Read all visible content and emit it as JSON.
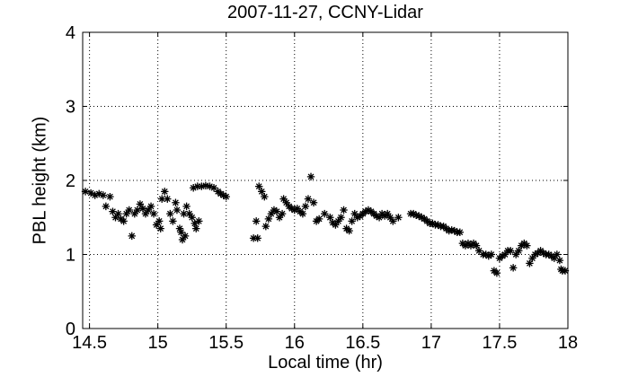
{
  "chart_data": {
    "type": "scatter",
    "title": "2007-11-27, CCNY-Lidar",
    "xlabel": "Local time (hr)",
    "ylabel": "PBL height (km)",
    "xlim": [
      14.45,
      18.0
    ],
    "ylim": [
      0,
      4
    ],
    "xticks": [
      "14.5",
      "15",
      "15.5",
      "16",
      "16.5",
      "17",
      "17.5",
      "18"
    ],
    "yticks": [
      "0",
      "1",
      "2",
      "3",
      "4"
    ],
    "grid": true,
    "marker": "asterisk",
    "marker_color": "#000000",
    "series": [
      {
        "points": [
          [
            14.47,
            1.85
          ],
          [
            14.51,
            1.83
          ],
          [
            14.54,
            1.8
          ],
          [
            14.57,
            1.82
          ],
          [
            14.6,
            1.8
          ],
          [
            14.62,
            1.65
          ],
          [
            14.65,
            1.78
          ],
          [
            14.67,
            1.58
          ],
          [
            14.69,
            1.5
          ],
          [
            14.71,
            1.55
          ],
          [
            14.73,
            1.48
          ],
          [
            14.75,
            1.45
          ],
          [
            14.77,
            1.55
          ],
          [
            14.79,
            1.6
          ],
          [
            14.81,
            1.25
          ],
          [
            14.83,
            1.55
          ],
          [
            14.85,
            1.6
          ],
          [
            14.87,
            1.68
          ],
          [
            14.89,
            1.62
          ],
          [
            14.91,
            1.55
          ],
          [
            14.93,
            1.6
          ],
          [
            14.95,
            1.65
          ],
          [
            14.97,
            1.55
          ],
          [
            14.99,
            1.4
          ],
          [
            15.01,
            1.45
          ],
          [
            15.02,
            1.35
          ],
          [
            15.03,
            1.75
          ],
          [
            15.05,
            1.85
          ],
          [
            15.07,
            1.75
          ],
          [
            15.09,
            1.55
          ],
          [
            15.11,
            1.45
          ],
          [
            15.13,
            1.7
          ],
          [
            15.14,
            1.6
          ],
          [
            15.16,
            1.35
          ],
          [
            15.17,
            1.3
          ],
          [
            15.18,
            1.2
          ],
          [
            15.19,
            1.55
          ],
          [
            15.2,
            1.25
          ],
          [
            15.21,
            1.65
          ],
          [
            15.23,
            1.55
          ],
          [
            15.25,
            1.5
          ],
          [
            15.27,
            1.42
          ],
          [
            15.28,
            1.35
          ],
          [
            15.3,
            1.45
          ],
          [
            15.26,
            1.9
          ],
          [
            15.29,
            1.92
          ],
          [
            15.32,
            1.92
          ],
          [
            15.35,
            1.93
          ],
          [
            15.38,
            1.92
          ],
          [
            15.41,
            1.9
          ],
          [
            15.44,
            1.85
          ],
          [
            15.46,
            1.82
          ],
          [
            15.48,
            1.8
          ],
          [
            15.5,
            1.78
          ],
          [
            15.7,
            1.22
          ],
          [
            15.72,
            1.45
          ],
          [
            15.73,
            1.22
          ],
          [
            15.74,
            1.92
          ],
          [
            15.76,
            1.85
          ],
          [
            15.78,
            1.78
          ],
          [
            15.79,
            1.38
          ],
          [
            15.81,
            1.48
          ],
          [
            15.83,
            1.55
          ],
          [
            15.85,
            1.6
          ],
          [
            15.87,
            1.58
          ],
          [
            15.89,
            1.5
          ],
          [
            15.91,
            1.55
          ],
          [
            15.92,
            1.75
          ],
          [
            15.94,
            1.7
          ],
          [
            15.96,
            1.65
          ],
          [
            15.98,
            1.62
          ],
          [
            16.0,
            1.6
          ],
          [
            16.02,
            1.62
          ],
          [
            16.04,
            1.58
          ],
          [
            16.06,
            1.55
          ],
          [
            16.08,
            1.65
          ],
          [
            16.1,
            1.75
          ],
          [
            16.12,
            2.05
          ],
          [
            16.14,
            1.7
          ],
          [
            16.16,
            1.45
          ],
          [
            16.18,
            1.48
          ],
          [
            16.22,
            1.55
          ],
          [
            16.26,
            1.5
          ],
          [
            16.28,
            1.43
          ],
          [
            16.3,
            1.4
          ],
          [
            16.32,
            1.45
          ],
          [
            16.34,
            1.5
          ],
          [
            16.36,
            1.6
          ],
          [
            16.38,
            1.35
          ],
          [
            16.4,
            1.32
          ],
          [
            16.42,
            1.45
          ],
          [
            16.44,
            1.55
          ],
          [
            16.46,
            1.5
          ],
          [
            16.48,
            1.52
          ],
          [
            16.5,
            1.55
          ],
          [
            16.52,
            1.58
          ],
          [
            16.54,
            1.6
          ],
          [
            16.56,
            1.58
          ],
          [
            16.58,
            1.55
          ],
          [
            16.6,
            1.52
          ],
          [
            16.62,
            1.5
          ],
          [
            16.64,
            1.55
          ],
          [
            16.66,
            1.52
          ],
          [
            16.68,
            1.55
          ],
          [
            16.7,
            1.5
          ],
          [
            16.72,
            1.45
          ],
          [
            16.76,
            1.5
          ],
          [
            16.85,
            1.55
          ],
          [
            16.87,
            1.55
          ],
          [
            16.89,
            1.53
          ],
          [
            16.91,
            1.52
          ],
          [
            16.93,
            1.5
          ],
          [
            16.95,
            1.48
          ],
          [
            16.97,
            1.45
          ],
          [
            16.99,
            1.42
          ],
          [
            17.01,
            1.42
          ],
          [
            17.03,
            1.4
          ],
          [
            17.05,
            1.4
          ],
          [
            17.07,
            1.38
          ],
          [
            17.09,
            1.38
          ],
          [
            17.11,
            1.35
          ],
          [
            17.13,
            1.32
          ],
          [
            17.15,
            1.33
          ],
          [
            17.17,
            1.32
          ],
          [
            17.19,
            1.3
          ],
          [
            17.21,
            1.3
          ],
          [
            17.23,
            1.15
          ],
          [
            17.25,
            1.12
          ],
          [
            17.27,
            1.15
          ],
          [
            17.29,
            1.12
          ],
          [
            17.31,
            1.15
          ],
          [
            17.33,
            1.12
          ],
          [
            17.35,
            1.05
          ],
          [
            17.38,
            1.0
          ],
          [
            17.4,
            1.0
          ],
          [
            17.42,
            0.98
          ],
          [
            17.44,
            1.0
          ],
          [
            17.46,
            0.78
          ],
          [
            17.48,
            0.75
          ],
          [
            17.5,
            0.95
          ],
          [
            17.52,
            0.98
          ],
          [
            17.54,
            1.0
          ],
          [
            17.56,
            1.05
          ],
          [
            17.58,
            1.05
          ],
          [
            17.6,
            0.82
          ],
          [
            17.62,
            1.0
          ],
          [
            17.64,
            1.05
          ],
          [
            17.66,
            1.12
          ],
          [
            17.68,
            1.15
          ],
          [
            17.7,
            1.12
          ],
          [
            17.72,
            0.88
          ],
          [
            17.74,
            0.95
          ],
          [
            17.76,
            1.0
          ],
          [
            17.78,
            1.02
          ],
          [
            17.8,
            1.05
          ],
          [
            17.82,
            1.02
          ],
          [
            17.84,
            1.0
          ],
          [
            17.86,
            1.0
          ],
          [
            17.88,
            0.98
          ],
          [
            17.9,
            0.95
          ],
          [
            17.92,
            1.0
          ],
          [
            17.94,
            0.92
          ],
          [
            17.95,
            0.8
          ],
          [
            17.96,
            0.78
          ],
          [
            17.98,
            0.78
          ]
        ]
      }
    ]
  }
}
